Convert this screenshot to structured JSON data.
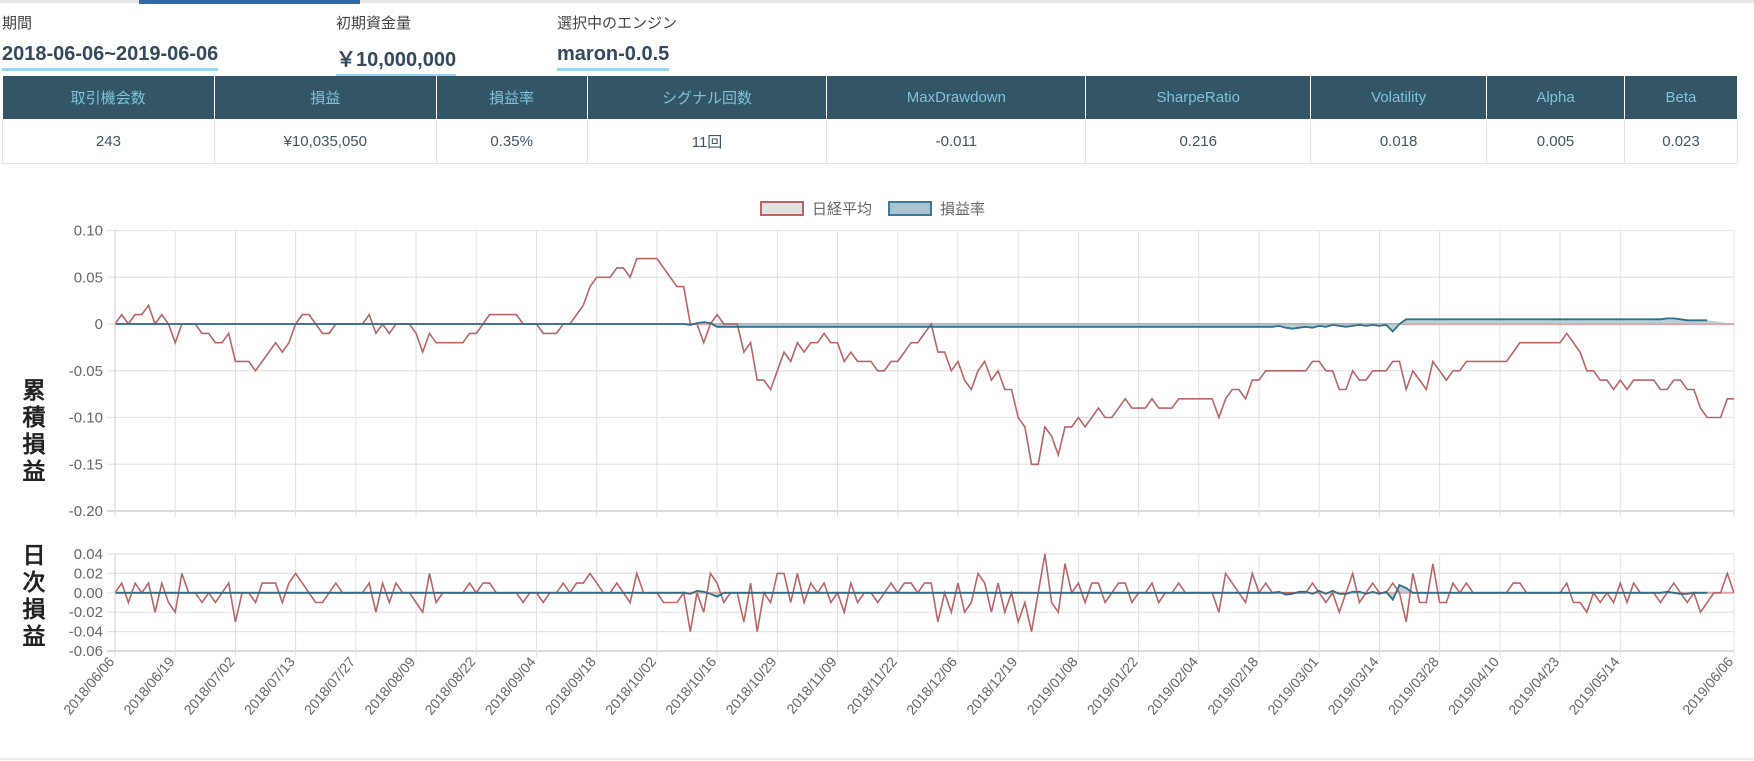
{
  "header": {
    "period_label": "期間",
    "period_value": "2018-06-06~2019-06-06",
    "capital_label": "初期資金量",
    "capital_value": "￥10,000,000",
    "engine_label": "選択中のエンジン",
    "engine_value": "maron-0.0.5"
  },
  "stats": {
    "headers": [
      "取引機会数",
      "損益",
      "損益率",
      "シグナル回数",
      "MaxDrawdown",
      "SharpeRatio",
      "Volatility",
      "Alpha",
      "Beta"
    ],
    "values": [
      "243",
      "¥10,035,050",
      "0.35%",
      "11回",
      "-0.011",
      "0.216",
      "0.018",
      "0.005",
      "0.023"
    ]
  },
  "colors": {
    "nikkei": "#b96566",
    "strategy": "#2f6f8a",
    "strategy_fill": "#a9c4d0",
    "header_bg": "#345566",
    "header_text": "#7cc4dc"
  },
  "chart_data": {
    "type": "line",
    "legend": [
      "日経平均",
      "損益率"
    ],
    "legend_position": "top-center",
    "top": {
      "ylabel": "累積損益",
      "ylim": [
        -0.2,
        0.1
      ],
      "yticks": [
        "0.10",
        "0.05",
        "0",
        "-0.05",
        "-0.10",
        "-0.15",
        "-0.20"
      ]
    },
    "bottom": {
      "ylabel": "日次損益",
      "ylim": [
        -0.06,
        0.04
      ],
      "yticks": [
        "0.04",
        "0.02",
        "0.00",
        "-0.02",
        "-0.04",
        "-0.06"
      ],
      "note_daily_values_are_day_over_day_changes": true
    },
    "xtick_indices": [
      0,
      9,
      18,
      27,
      36,
      45,
      54,
      63,
      72,
      81,
      90,
      99,
      108,
      117,
      126,
      135,
      144,
      153,
      162,
      171,
      180,
      189,
      198,
      207,
      216,
      225,
      242
    ],
    "xtick_labels": [
      "2018/06/06",
      "2018/06/19",
      "2018/07/02",
      "2018/07/13",
      "2018/07/27",
      "2018/08/09",
      "2018/08/22",
      "2018/09/04",
      "2018/09/18",
      "2018/10/02",
      "2018/10/16",
      "2018/10/29",
      "2018/11/09",
      "2018/11/22",
      "2018/12/06",
      "2018/12/19",
      "2019/01/08",
      "2019/01/22",
      "2019/02/04",
      "2019/02/18",
      "2019/03/01",
      "2019/03/14",
      "2019/03/28",
      "2019/04/10",
      "2019/04/23",
      "2019/05/14",
      "2019/06/06"
    ],
    "series": [
      {
        "name": "日経平均",
        "values": [
          0,
          0.01,
          0,
          0.01,
          0.01,
          0.02,
          0,
          0.01,
          0,
          -0.02,
          0,
          0,
          0,
          -0.01,
          -0.01,
          -0.02,
          -0.02,
          -0.01,
          -0.04,
          -0.04,
          -0.04,
          -0.05,
          -0.04,
          -0.03,
          -0.02,
          -0.03,
          -0.02,
          0,
          0.01,
          0.01,
          0,
          -0.01,
          -0.01,
          0,
          0,
          0,
          0,
          0,
          0.01,
          -0.01,
          0,
          -0.01,
          0,
          0,
          0,
          -0.01,
          -0.03,
          -0.01,
          -0.02,
          -0.02,
          -0.02,
          -0.02,
          -0.02,
          -0.01,
          -0.01,
          0,
          0.01,
          0.01,
          0.01,
          0.01,
          0.01,
          0,
          0,
          0,
          -0.01,
          -0.01,
          -0.01,
          0,
          0,
          0.01,
          0.02,
          0.04,
          0.05,
          0.05,
          0.05,
          0.06,
          0.06,
          0.05,
          0.07,
          0.07,
          0.07,
          0.07,
          0.06,
          0.05,
          0.04,
          0.04,
          0,
          0,
          -0.02,
          0,
          0.01,
          0,
          0,
          0,
          -0.03,
          -0.02,
          -0.06,
          -0.06,
          -0.07,
          -0.05,
          -0.03,
          -0.04,
          -0.02,
          -0.03,
          -0.02,
          -0.02,
          -0.01,
          -0.02,
          -0.02,
          -0.04,
          -0.03,
          -0.04,
          -0.04,
          -0.04,
          -0.05,
          -0.05,
          -0.04,
          -0.04,
          -0.03,
          -0.02,
          -0.02,
          -0.01,
          0,
          -0.03,
          -0.03,
          -0.05,
          -0.04,
          -0.06,
          -0.07,
          -0.05,
          -0.04,
          -0.06,
          -0.05,
          -0.07,
          -0.07,
          -0.1,
          -0.11,
          -0.15,
          -0.15,
          -0.11,
          -0.12,
          -0.14,
          -0.11,
          -0.11,
          -0.1,
          -0.11,
          -0.1,
          -0.09,
          -0.1,
          -0.1,
          -0.09,
          -0.08,
          -0.09,
          -0.09,
          -0.09,
          -0.08,
          -0.09,
          -0.09,
          -0.09,
          -0.08,
          -0.08,
          -0.08,
          -0.08,
          -0.08,
          -0.08,
          -0.1,
          -0.08,
          -0.07,
          -0.07,
          -0.08,
          -0.06,
          -0.06,
          -0.05,
          -0.05,
          -0.05,
          -0.05,
          -0.05,
          -0.05,
          -0.05,
          -0.04,
          -0.04,
          -0.05,
          -0.05,
          -0.07,
          -0.07,
          -0.05,
          -0.06,
          -0.06,
          -0.05,
          -0.05,
          -0.05,
          -0.04,
          -0.04,
          -0.07,
          -0.05,
          -0.06,
          -0.07,
          -0.04,
          -0.05,
          -0.06,
          -0.05,
          -0.05,
          -0.04,
          -0.04,
          -0.04,
          -0.04,
          -0.04,
          -0.04,
          -0.04,
          -0.03,
          -0.02,
          -0.02,
          -0.02,
          -0.02,
          -0.02,
          -0.02,
          -0.02,
          -0.01,
          -0.02,
          -0.03,
          -0.05,
          -0.05,
          -0.06,
          -0.06,
          -0.07,
          -0.06,
          -0.07,
          -0.06,
          -0.06,
          -0.06,
          -0.06,
          -0.07,
          -0.07,
          -0.06,
          -0.06,
          -0.07,
          -0.07,
          -0.09,
          -0.1,
          -0.1,
          -0.1,
          -0.08,
          -0.08
        ]
      },
      {
        "name": "損益率",
        "values": [
          0,
          0,
          0,
          0,
          0,
          0,
          0,
          0,
          0,
          0,
          0,
          0,
          0,
          0,
          0,
          0,
          0,
          0,
          0,
          0,
          0,
          0,
          0,
          0,
          0,
          0,
          0,
          0,
          0,
          0,
          0,
          0,
          0,
          0,
          0,
          0,
          0,
          0,
          0,
          0,
          0,
          0,
          0,
          0,
          0,
          0,
          0,
          0,
          0,
          0,
          0,
          0,
          0,
          0,
          0,
          0,
          0,
          0,
          0,
          0,
          0,
          0,
          0,
          0,
          0,
          0,
          0,
          0,
          0,
          0,
          0,
          0,
          0,
          0,
          0,
          0,
          0,
          0,
          0,
          0,
          0,
          0,
          0,
          0,
          0,
          0,
          -0.001,
          0.001,
          0.002,
          0.001,
          -0.003,
          -0.003,
          -0.003,
          -0.003,
          -0.003,
          -0.003,
          -0.003,
          -0.003,
          -0.003,
          -0.003,
          -0.003,
          -0.003,
          -0.003,
          -0.003,
          -0.003,
          -0.003,
          -0.003,
          -0.003,
          -0.003,
          -0.003,
          -0.003,
          -0.003,
          -0.003,
          -0.003,
          -0.003,
          -0.003,
          -0.003,
          -0.003,
          -0.003,
          -0.003,
          -0.003,
          -0.003,
          -0.003,
          -0.003,
          -0.003,
          -0.003,
          -0.003,
          -0.003,
          -0.003,
          -0.003,
          -0.003,
          -0.003,
          -0.003,
          -0.003,
          -0.003,
          -0.003,
          -0.003,
          -0.003,
          -0.003,
          -0.003,
          -0.003,
          -0.003,
          -0.003,
          -0.003,
          -0.003,
          -0.003,
          -0.003,
          -0.003,
          -0.003,
          -0.003,
          -0.003,
          -0.003,
          -0.003,
          -0.003,
          -0.003,
          -0.003,
          -0.003,
          -0.003,
          -0.003,
          -0.003,
          -0.003,
          -0.003,
          -0.003,
          -0.003,
          -0.003,
          -0.003,
          -0.003,
          -0.003,
          -0.003,
          -0.003,
          -0.003,
          -0.003,
          -0.003,
          -0.003,
          -0.002,
          -0.004,
          -0.005,
          -0.004,
          -0.003,
          -0.004,
          -0.002,
          -0.003,
          -0.001,
          -0.002,
          -0.003,
          -0.002,
          -0.001,
          -0.002,
          -0.001,
          -0.002,
          -0.001,
          -0.008,
          0.0,
          0.005,
          0.005,
          0.005,
          0.005,
          0.005,
          0.005,
          0.005,
          0.005,
          0.005,
          0.005,
          0.005,
          0.005,
          0.005,
          0.005,
          0.005,
          0.005,
          0.005,
          0.005,
          0.005,
          0.005,
          0.005,
          0.005,
          0.005,
          0.005,
          0.005,
          0.005,
          0.005,
          0.005,
          0.005,
          0.005,
          0.005,
          0.005,
          0.005,
          0.005,
          0.005,
          0.005,
          0.005,
          0.005,
          0.005,
          0.006,
          0.006,
          0.005,
          0.004,
          0.004,
          0.004,
          0.004
        ]
      }
    ]
  }
}
